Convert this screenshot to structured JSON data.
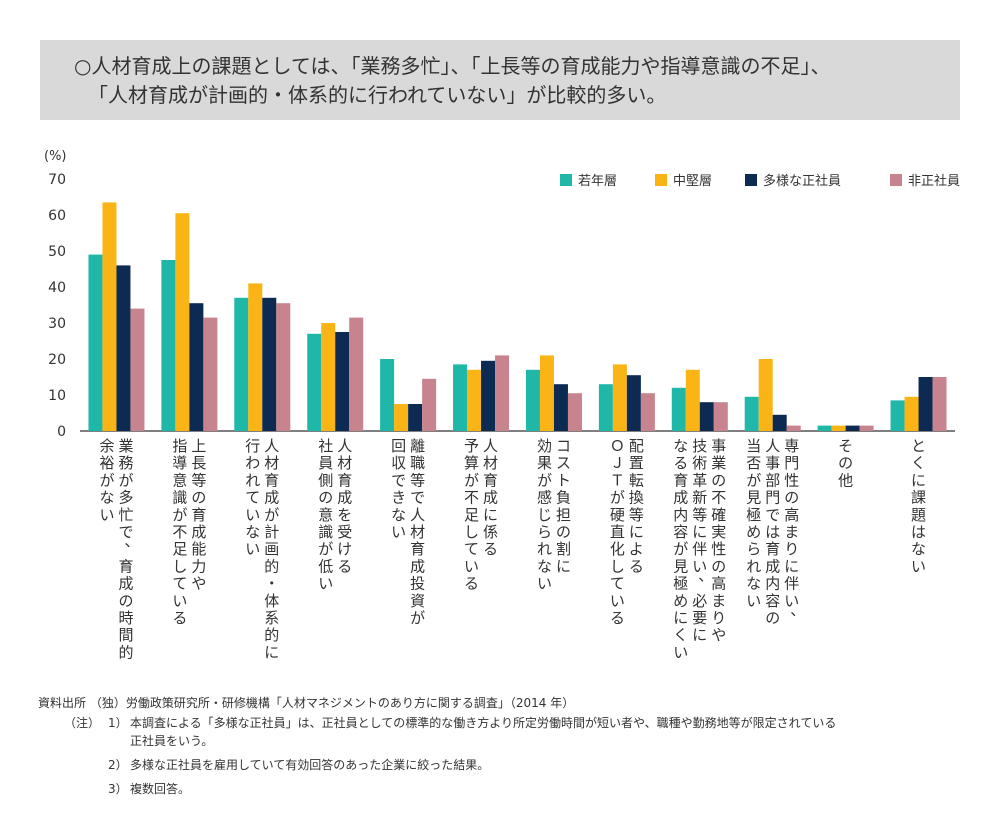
{
  "banner": {
    "line1": "○人材育成上の課題としては、「業務多忙」、「上長等の育成能力や指導意識の不足」、",
    "line2": "「人材育成が計画的・体系的に行われていない」が比較的多い。"
  },
  "chart_data": {
    "type": "bar",
    "ylabel": "(%)",
    "ylim": [
      0,
      70
    ],
    "yticks": [
      0,
      10,
      20,
      30,
      40,
      50,
      60,
      70
    ],
    "grid": false,
    "legend_position": "top-right",
    "categories": [
      [
        "業務が多忙で、育成の時間的",
        "余裕がない"
      ],
      [
        "上長等の育成能力や",
        "指導意識が不足している"
      ],
      [
        "人材育成が計画的・体系的に",
        "行われていない"
      ],
      [
        "人材育成を受ける",
        "社員側の意識が低い"
      ],
      [
        "離職等で人材育成投資が",
        "回収できない"
      ],
      [
        "人材育成に係る",
        "予算が不足している"
      ],
      [
        "コスト負担の割に",
        "効果が感じられない"
      ],
      [
        "配置転換等による",
        "ＯＪＴが硬直化している"
      ],
      [
        "事業の不確実性の高まりや",
        "技術革新等に伴い、必要に",
        "なる育成内容が見極めにくい"
      ],
      [
        "専門性の高まりに伴い、",
        "人事部門では育成内容の",
        "当否が見極められない"
      ],
      [
        "その他"
      ],
      [
        "とくに課題はない"
      ]
    ],
    "series": [
      {
        "name": "若年層",
        "color": "#1fb8a8",
        "values": [
          49,
          47.5,
          37,
          27,
          20,
          18.5,
          17,
          13,
          12,
          9.5,
          1.5,
          8.5
        ]
      },
      {
        "name": "中堅層",
        "color": "#fbb416",
        "values": [
          63.5,
          60.5,
          41,
          30,
          7.5,
          17,
          21,
          18.5,
          17,
          20,
          1.5,
          9.5
        ]
      },
      {
        "name": "多様な正社員",
        "color": "#0c2a52",
        "values": [
          46,
          35.5,
          37,
          27.5,
          7.5,
          19.5,
          13,
          15.5,
          8,
          4.5,
          1.5,
          15
        ]
      },
      {
        "name": "非正社員",
        "color": "#c7838e",
        "values": [
          34,
          31.5,
          35.5,
          31.5,
          14.5,
          21,
          10.5,
          10.5,
          8,
          1.5,
          1.5,
          15
        ]
      }
    ]
  },
  "footer": {
    "source_label": "資料出所",
    "source_text": "（独）労働政策研究所・研修機構「人材マネジメントのあり方に関する調査」（2014 年）",
    "note_label": "（注）",
    "notes": [
      {
        "num": "1）",
        "text": "本調査による「多様な正社員」は、正社員としての標準的な働き方より所定労働時間が短い者や、職種や勤務地等が限定されている",
        "cont": "正社員をいう。"
      },
      {
        "num": "2）",
        "text": "多様な正社員を雇用していて有効回答のあった企業に絞った結果。"
      },
      {
        "num": "3）",
        "text": "複数回答。"
      }
    ]
  }
}
